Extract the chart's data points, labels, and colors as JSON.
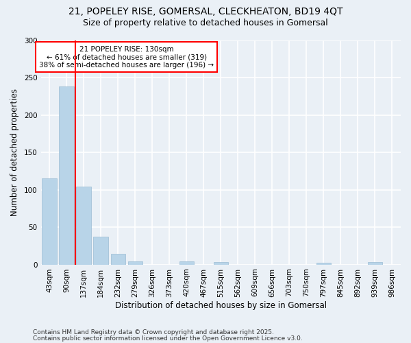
{
  "title_line1": "21, POPELEY RISE, GOMERSAL, CLECKHEATON, BD19 4QT",
  "title_line2": "Size of property relative to detached houses in Gomersal",
  "xlabel": "Distribution of detached houses by size in Gomersal",
  "ylabel": "Number of detached properties",
  "categories": [
    "43sqm",
    "90sqm",
    "137sqm",
    "184sqm",
    "232sqm",
    "279sqm",
    "326sqm",
    "373sqm",
    "420sqm",
    "467sqm",
    "515sqm",
    "562sqm",
    "609sqm",
    "656sqm",
    "703sqm",
    "750sqm",
    "797sqm",
    "845sqm",
    "892sqm",
    "939sqm",
    "986sqm"
  ],
  "values": [
    115,
    238,
    104,
    37,
    14,
    4,
    0,
    0,
    4,
    0,
    3,
    0,
    0,
    0,
    0,
    0,
    2,
    0,
    0,
    3,
    0
  ],
  "bar_color": "#b8d4e8",
  "bar_edge_color": "#9bbdd4",
  "annotation_text_line1": "21 POPELEY RISE: 130sqm",
  "annotation_text_line2": "← 61% of detached houses are smaller (319)",
  "annotation_text_line3": "38% of semi-detached houses are larger (196) →",
  "annotation_box_color": "white",
  "annotation_box_edge_color": "red",
  "vline_color": "red",
  "vline_x": 1.5,
  "ylim": [
    0,
    300
  ],
  "yticks": [
    0,
    50,
    100,
    150,
    200,
    250,
    300
  ],
  "footnote_line1": "Contains HM Land Registry data © Crown copyright and database right 2025.",
  "footnote_line2": "Contains public sector information licensed under the Open Government Licence v3.0.",
  "bg_color": "#eaf0f6",
  "plot_bg_color": "#eaf0f6",
  "grid_color": "white",
  "title_fontsize": 10,
  "subtitle_fontsize": 9,
  "label_fontsize": 8.5,
  "tick_fontsize": 7.5,
  "annotation_fontsize": 7.5,
  "footnote_fontsize": 6.5
}
